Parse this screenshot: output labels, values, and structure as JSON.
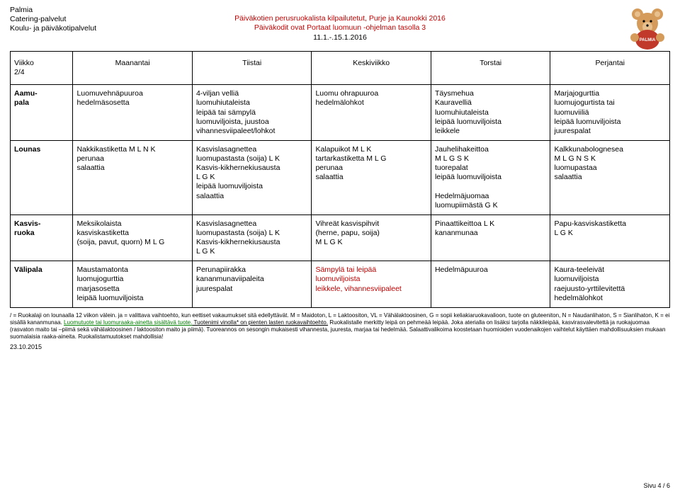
{
  "header": {
    "org": "Palmia",
    "line2": "Catering-palvelut",
    "line3": "Koulu- ja päiväkotipalvelut",
    "title1": "Päiväkotien perusruokalista kilpailutetut, Purje ja Kaunokki 2016",
    "title2": "Päiväkodit ovat Portaat luomuun -ohjelman tasolla 3",
    "date": "11.1.-.15.1.2016"
  },
  "colhead": {
    "week_label": "Viikko",
    "week_num": "2/4",
    "mon": "Maanantai",
    "tue": "Tiistai",
    "wed": "Keskiviikko",
    "thu": "Torstai",
    "fri": "Perjantai"
  },
  "rows": {
    "aamu": {
      "label": "Aamu-\npala",
      "mon": "Luomuvehnäpuuroa\nhedelmäsosetta",
      "tue": "4-viljan velliä\nluomuhiutaleista\nleipää tai sämpylä\nluomuviljoista, juustoa\nvihannesviipaleet/lohkot",
      "wed": "Luomu ohrapuuroa\nhedelmälohkot",
      "thu": "Täysmehua\nKauravelliä\nluomuhiutaleista\nleipää luomuviljoista\nleikkele",
      "fri": "Marjajogurttia\nluomujogurtista tai\nluomuviiliä\nleipää luomuviljoista\njuurespalat"
    },
    "lounas": {
      "label": "Lounas",
      "mon": "Nakkikastiketta M L N K\nperunaa\nsalaattia",
      "tue": "Kasvislasagnettea\nluomupastasta (soija) L K\nKasvis-kikhernekiusausta\nL G K\nleipää luomuviljoista\nsalaattia",
      "wed": "Kalapuikot M L K\ntartarkastiketta M L G\nperunaa\nsalaattia",
      "thu": "Jauhelihakeittoa\nM L G S K\ntuorepalat\nleipää luomuviljoista\n\nHedelmäjuomaa\nluomupiimästä G K",
      "fri": "Kalkkunabolognesea\nM L G N S K\nluomupastaa\nsalaattia"
    },
    "kasvis": {
      "label": "Kasvis-\nruoka",
      "mon": "Meksikolaista\nkasviskastiketta\n(soija, pavut, quorn) M L G",
      "tue": "Kasvislasagnettea\nluomupastasta (soija) L K\nKasvis-kikhernekiusausta\nL G K",
      "wed": "Vihreät kasvispihvit\n(herne, papu, soija)\nM L G K",
      "thu": "Pinaattikeittoa L K\nkananmunaa",
      "fri": "Papu-kasviskastiketta\nL G K"
    },
    "vali": {
      "label": "Välipala",
      "mon": "Maustamatonta\nluomujogurttia\nmarjasosetta\nleipää luomuviljoista",
      "tue": "Perunapiirakka\nkananmunaviipaleita\njuurespalat",
      "wed": "Sämpylä tai leipää\nluomuviljoista\nleikkele, vihannesviipaleet",
      "thu": "Hedelmäpuuroa",
      "fri": "Kaura-teeleivät\nluomuviljoista\nraejuusto-yrttilevitettä\nhedelmälohkot"
    }
  },
  "footer": {
    "p1a": "/ = Ruokalaji on lounaalla 12 viikon välein. ja = valittava vaihtoehto, kun eettiset vakaumukset sitä edellyttävät. M = Maidoton, L = Laktoositon, VL = Vähälaktoosinen, G = sopii keliakiaruokavalioon, tuote on gluteeniton, N = Naudanlihaton, S = Sianlihaton, K = ei sisällä kananmunaa. ",
    "p1b_green": "Luomutuote tai luomuraaka-ainetta sisältävä tuote.",
    "p1c_ul": " Tuotenimi vinolla* on pienten lasten ruokavaihtoehto.",
    "p1d": " Ruokalistalle merkitty leipä on pehmeää leipää. Joka aterialla on lisäksi tarjolla näkkileipää, kasvirasvalevitettä ja ruokajuomaa (rasvaton maito tai –piimä sekä vähälaktoosinen / laktoositon maito ja piimä). Tuoreannos on sesongin mukaisesti vihannesta, juuresta, marjaa tai hedelmää. Salaattivalikoima koostetaan huomioiden vuodenaikojen vaihtelut käyttäen mahdollisuuksien mukaan suomalaisia raaka-aineita. Ruokalistamuutokset mahdollisia!",
    "date": "23.10.2015",
    "page": "Sivu 4 / 6"
  },
  "bear": {
    "body": "#d49b5a",
    "inner": "#e7c08e",
    "shirt": "#c0392b",
    "text": "PALMIA"
  }
}
